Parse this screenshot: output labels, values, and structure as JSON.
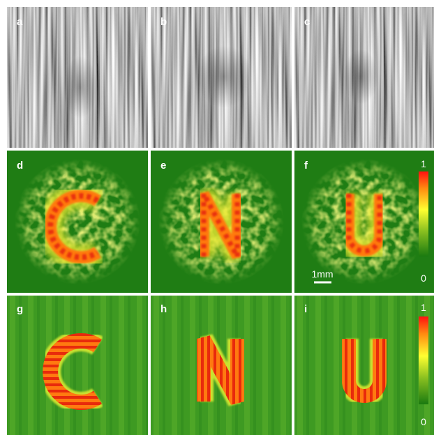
{
  "panels": [
    {
      "label": "a"
    },
    {
      "label": "b"
    },
    {
      "label": "c"
    },
    {
      "label": "d"
    },
    {
      "label": "e"
    },
    {
      "label": "f"
    },
    {
      "label": "g"
    },
    {
      "label": "h"
    },
    {
      "label": "i"
    }
  ],
  "colorbars": [
    {
      "max": 1,
      "min": 0
    },
    {
      "max": 1,
      "min": 0
    }
  ],
  "scale_bar": "1mm"
}
